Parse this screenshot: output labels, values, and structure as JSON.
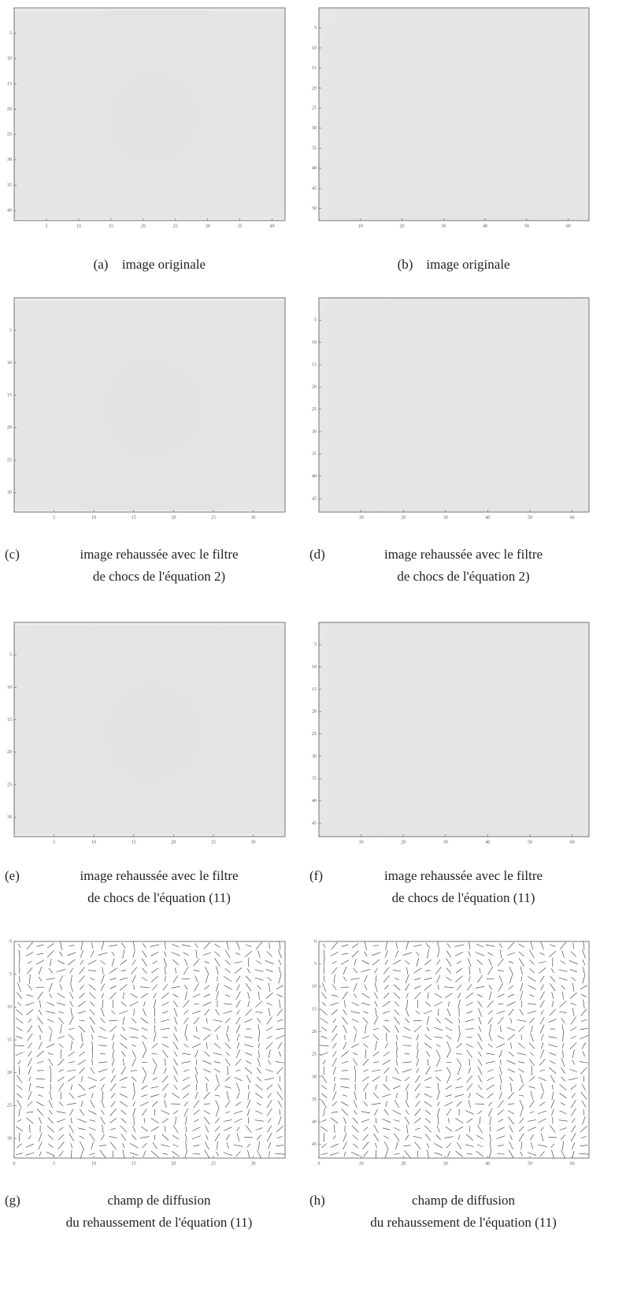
{
  "panels": [
    {
      "label": "(a)",
      "caption": [
        "image originale"
      ],
      "xlim": [
        0,
        42
      ],
      "ylim": [
        0,
        42
      ],
      "xticks": [
        5,
        10,
        15,
        20,
        25,
        30,
        35,
        40
      ],
      "yticks": [
        5,
        10,
        15,
        20,
        25,
        30,
        35,
        40
      ]
    },
    {
      "label": "(b)",
      "caption": [
        "image originale"
      ],
      "xlim": [
        0,
        65
      ],
      "ylim": [
        0,
        53
      ],
      "xticks": [
        10,
        20,
        30,
        40,
        50,
        60
      ],
      "yticks": [
        5,
        10,
        15,
        20,
        25,
        30,
        35,
        40,
        45,
        50
      ]
    },
    {
      "label": "(c)",
      "caption": [
        "image rehaussée avec le filtre",
        "de chocs de l'équation 2)"
      ],
      "xlim": [
        0,
        34
      ],
      "ylim": [
        0,
        33
      ],
      "xticks": [
        5,
        10,
        15,
        20,
        25,
        30
      ],
      "yticks": [
        5,
        10,
        15,
        20,
        25,
        30
      ]
    },
    {
      "label": "(d)",
      "caption": [
        "image rehaussée avec le filtre",
        "de chocs de l'équation 2)"
      ],
      "xlim": [
        0,
        64
      ],
      "ylim": [
        0,
        48
      ],
      "xticks": [
        10,
        20,
        30,
        40,
        50,
        60
      ],
      "yticks": [
        5,
        10,
        15,
        20,
        25,
        30,
        35,
        40,
        45
      ]
    },
    {
      "label": "(e)",
      "caption": [
        "image rehaussée avec le filtre",
        "de chocs de l'équation (11)"
      ],
      "xlim": [
        0,
        34
      ],
      "ylim": [
        0,
        33
      ],
      "xticks": [
        5,
        10,
        15,
        20,
        25,
        30
      ],
      "yticks": [
        5,
        10,
        15,
        20,
        25,
        30
      ]
    },
    {
      "label": "(f)",
      "caption": [
        "image rehaussée avec le filtre",
        "de chocs de l'équation (11)"
      ],
      "xlim": [
        0,
        64
      ],
      "ylim": [
        0,
        48
      ],
      "xticks": [
        10,
        20,
        30,
        40,
        50,
        60
      ],
      "yticks": [
        5,
        10,
        15,
        20,
        25,
        30,
        35,
        40,
        45
      ]
    },
    {
      "label": "(g)",
      "caption": [
        "champ de diffusion",
        "du rehaussement de l'équation (11)"
      ],
      "xlim": [
        0,
        34
      ],
      "ylim": [
        0,
        33
      ],
      "xticks": [
        0,
        5,
        10,
        15,
        20,
        25,
        30
      ],
      "yticks": [
        0,
        5,
        10,
        15,
        20,
        25,
        30
      ]
    },
    {
      "label": "(h)",
      "caption": [
        "champ de diffusion",
        "du rehaussement de l'équation (11)"
      ],
      "xlim": [
        0,
        64
      ],
      "ylim": [
        0,
        48
      ],
      "xticks": [
        0,
        10,
        20,
        30,
        40,
        50,
        60
      ],
      "yticks": [
        0,
        5,
        10,
        15,
        20,
        25,
        30,
        35,
        40,
        45
      ]
    }
  ]
}
